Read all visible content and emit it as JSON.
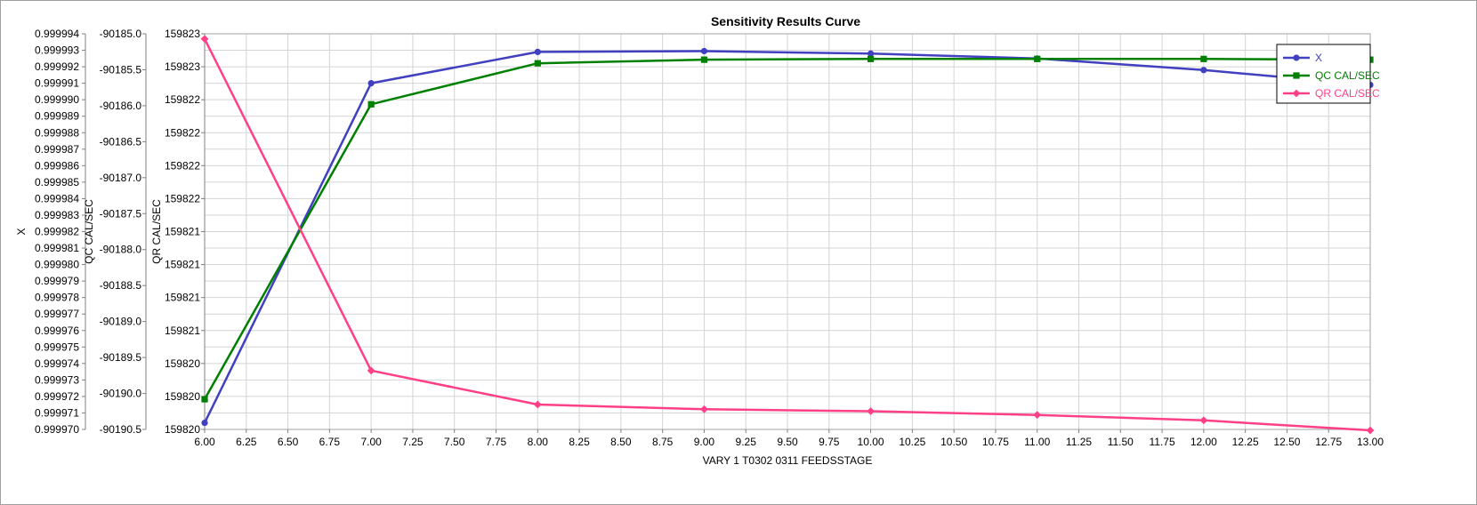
{
  "chart_data": {
    "type": "line",
    "title": "Sensitivity Results Curve",
    "xlabel": "VARY   1 T0302 0311 FEEDSSTAGE",
    "x": [
      6,
      7,
      8,
      9,
      10,
      11,
      12,
      13
    ],
    "xlim": [
      6,
      13
    ],
    "x_ticks": [
      "6.00",
      "6.25",
      "6.50",
      "6.75",
      "7.00",
      "7.25",
      "7.50",
      "7.75",
      "8.00",
      "8.25",
      "8.50",
      "8.75",
      "9.00",
      "9.25",
      "9.50",
      "9.75",
      "10.00",
      "10.25",
      "10.50",
      "10.75",
      "11.00",
      "11.25",
      "11.50",
      "11.75",
      "12.00",
      "12.25",
      "12.50",
      "12.75",
      "13.00"
    ],
    "grid": true,
    "legend_position": "top-right",
    "y_axes": [
      {
        "label": "X",
        "ticks": [
          "0.999994",
          "0.999993",
          "0.999992",
          "0.999991",
          "0.999990",
          "0.999989",
          "0.999988",
          "0.999987",
          "0.999986",
          "0.999985",
          "0.999984",
          "0.999983",
          "0.999982",
          "0.999981",
          "0.999980",
          "0.999979",
          "0.999978",
          "0.999977",
          "0.999976",
          "0.999975",
          "0.999974",
          "0.999973",
          "0.999972",
          "0.999971",
          "0.999970"
        ]
      },
      {
        "label": "QC CAL/SEC",
        "ticks": [
          "-90185.0",
          "-90185.5",
          "-90186.0",
          "-90186.5",
          "-90187.0",
          "-90187.5",
          "-90188.0",
          "-90188.5",
          "-90189.0",
          "-90189.5",
          "-90190.0",
          "-90190.5"
        ]
      },
      {
        "label": "QR CAL/SEC",
        "ticks": [
          "159823",
          "159823",
          "159822",
          "159822",
          "159822",
          "159822",
          "159821",
          "159821",
          "159821",
          "159821",
          "159820",
          "159820",
          "159820"
        ]
      }
    ],
    "series": [
      {
        "name": "X",
        "axis": 0,
        "color": "#4040c0",
        "marker": "circle",
        "ylim": [
          0.99997,
          0.999994
        ],
        "values": [
          0.9999704,
          0.999991,
          0.9999929,
          0.99999295,
          0.9999928,
          0.9999925,
          0.9999918,
          0.9999909
        ]
      },
      {
        "name": "QC CAL/SEC",
        "axis": 1,
        "color": "#008000",
        "marker": "square",
        "ylim": [
          -90190.5,
          -90185.0
        ],
        "values": [
          -90190.08,
          -90185.98,
          -90185.41,
          -90185.36,
          -90185.35,
          -90185.35,
          -90185.35,
          -90185.36
        ]
      },
      {
        "name": "QR CAL/SEC",
        "axis": 2,
        "color": "#ff4088",
        "marker": "diamond",
        "ylim": [
          159820.0,
          159823.0
        ],
        "values": [
          159822.961,
          159820.446,
          159820.189,
          159820.153,
          159820.138,
          159820.11,
          159820.069,
          159819.993
        ]
      }
    ]
  }
}
